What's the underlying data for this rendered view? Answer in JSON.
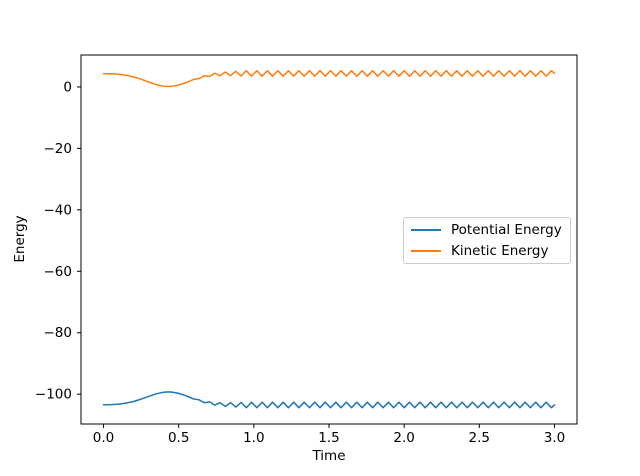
{
  "figure": {
    "background": "#ffffff",
    "axes_frame_color": "#000000"
  },
  "chart_data": {
    "type": "line",
    "title": "",
    "xlabel": "Time",
    "ylabel": "Energy",
    "xlim": [
      -0.15,
      3.15
    ],
    "ylim": [
      -109.7,
      10.4
    ],
    "grid": false,
    "legend": {
      "position": "center-right",
      "frame": true,
      "border_color": "#cccccc"
    },
    "xticks": {
      "values": [
        0,
        0.5,
        1.0,
        1.5,
        2.0,
        2.5,
        3.0
      ],
      "labels": [
        "0.0",
        "0.5",
        "1.0",
        "1.5",
        "2.0",
        "2.5",
        "3.0"
      ]
    },
    "yticks": {
      "values": [
        0,
        -20,
        -40,
        -60,
        -80,
        -100
      ],
      "labels": [
        "0",
        "−20",
        "−40",
        "−60",
        "−80",
        "−100"
      ]
    },
    "t": [
      0,
      0.05,
      0.1,
      0.15,
      0.2,
      0.25,
      0.3,
      0.35,
      0.4,
      0.43,
      0.45,
      0.5,
      0.55,
      0.6,
      0.635,
      0.67,
      0.705,
      0.74,
      0.775,
      0.81,
      0.845,
      0.88,
      0.915,
      0.95,
      0.985,
      1.02,
      1.055,
      1.09,
      1.125,
      1.16,
      1.195,
      1.23,
      1.265,
      1.3,
      1.335,
      1.37,
      1.405,
      1.44,
      1.475,
      1.51,
      1.545,
      1.58,
      1.615,
      1.65,
      1.685,
      1.72,
      1.755,
      1.79,
      1.825,
      1.86,
      1.895,
      1.93,
      1.965,
      2.0,
      2.035,
      2.07,
      2.105,
      2.14,
      2.175,
      2.21,
      2.245,
      2.28,
      2.315,
      2.35,
      2.385,
      2.42,
      2.455,
      2.49,
      2.525,
      2.56,
      2.595,
      2.63,
      2.665,
      2.7,
      2.735,
      2.77,
      2.805,
      2.84,
      2.875,
      2.91,
      2.945,
      2.98,
      3.0
    ],
    "series": [
      {
        "name": "Potential Energy",
        "color": "#1f77b4",
        "values": [
          -103.46,
          -103.39,
          -103.22,
          -102.9,
          -102.37,
          -101.61,
          -100.71,
          -99.88,
          -99.34,
          -99.25,
          -99.29,
          -99.74,
          -100.53,
          -101.55,
          -101.82,
          -102.76,
          -102.51,
          -103.55,
          -102.77,
          -103.98,
          -102.78,
          -104.21,
          -102.67,
          -104.4,
          -102.6,
          -104.4,
          -102.6,
          -104.4,
          -102.6,
          -104.4,
          -102.6,
          -104.4,
          -102.6,
          -104.4,
          -102.6,
          -104.4,
          -102.6,
          -104.4,
          -102.6,
          -104.4,
          -102.6,
          -104.4,
          -102.6,
          -104.4,
          -102.6,
          -104.4,
          -102.6,
          -104.4,
          -102.6,
          -104.4,
          -102.6,
          -104.4,
          -102.6,
          -104.4,
          -102.6,
          -104.4,
          -102.6,
          -104.4,
          -102.6,
          -104.4,
          -102.6,
          -104.4,
          -102.6,
          -104.4,
          -102.6,
          -104.4,
          -102.6,
          -104.4,
          -102.6,
          -104.4,
          -102.6,
          -104.4,
          -102.6,
          -104.4,
          -102.6,
          -104.4,
          -102.6,
          -104.4,
          -102.6,
          -104.4,
          -102.6,
          -104.4,
          -103.5
        ]
      },
      {
        "name": "Kinetic Energy",
        "color": "#ff7f0e",
        "values": [
          4.36,
          4.29,
          4.12,
          3.8,
          3.27,
          2.51,
          1.61,
          0.78,
          0.24,
          0.15,
          0.19,
          0.64,
          1.43,
          2.45,
          2.72,
          3.66,
          3.41,
          4.45,
          3.67,
          4.88,
          3.68,
          5.11,
          3.57,
          5.3,
          3.5,
          5.3,
          3.5,
          5.3,
          3.5,
          5.3,
          3.5,
          5.3,
          3.5,
          5.3,
          3.5,
          5.3,
          3.5,
          5.3,
          3.5,
          5.3,
          3.5,
          5.3,
          3.5,
          5.3,
          3.5,
          5.3,
          3.5,
          5.3,
          3.5,
          5.3,
          3.5,
          5.3,
          3.5,
          5.3,
          3.5,
          5.3,
          3.5,
          5.3,
          3.5,
          5.3,
          3.5,
          5.3,
          3.5,
          5.3,
          3.5,
          5.3,
          3.5,
          5.3,
          3.5,
          5.3,
          3.5,
          5.3,
          3.5,
          5.3,
          3.5,
          5.3,
          3.5,
          5.3,
          3.5,
          5.3,
          3.5,
          5.3,
          4.4
        ]
      }
    ]
  }
}
